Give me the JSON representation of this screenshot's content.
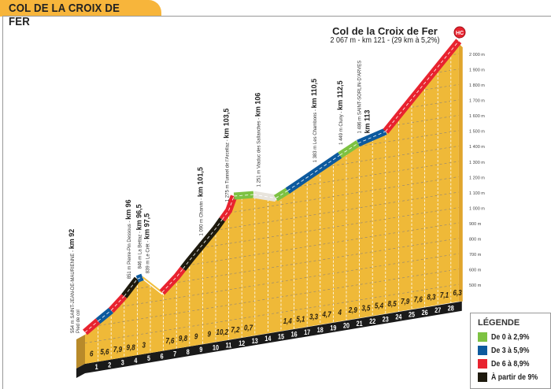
{
  "title": "COL DE LA CROIX DE FER",
  "summit": {
    "name": "Col de la Croix de Fer",
    "info": "2 067 m - km 121 - (29 km à 5,2%)",
    "category": "HC"
  },
  "legend": {
    "title": "LÉGENDE",
    "items": [
      {
        "label": "De 0 à 2,9%",
        "color": "#7dc242"
      },
      {
        "label": "De 3 à 5,9%",
        "color": "#0d5a9e"
      },
      {
        "label": "De 6 à 8,9%",
        "color": "#e8232f"
      },
      {
        "label": "À partir de 9%",
        "color": "#1e1a0e"
      }
    ]
  },
  "chart_data": {
    "type": "area",
    "title": "COL DE LA CROIX DE FER",
    "xlabel": "km",
    "ylabel": "altitude (m)",
    "y_ticks": [
      "500 m",
      "600 m",
      "700 m",
      "800 m",
      "900 m",
      "1 000 m",
      "1 100 m",
      "1 200 m",
      "1 300 m",
      "1 400 m",
      "1 500 m",
      "1 600 m",
      "1 700 m",
      "1 800 m",
      "1 900 m",
      "2 000 m"
    ],
    "y_tick_values": [
      500,
      600,
      700,
      800,
      900,
      1000,
      1100,
      1200,
      1300,
      1400,
      1500,
      1600,
      1700,
      1800,
      1900,
      2000
    ],
    "ylim": [
      500,
      2067
    ],
    "km_ticks": [
      "1",
      "2",
      "3",
      "4",
      "5",
      "6",
      "7",
      "8",
      "9",
      "10",
      "11",
      "12",
      "13",
      "14",
      "15",
      "16",
      "17",
      "18",
      "19",
      "20",
      "21",
      "22",
      "23",
      "24",
      "25",
      "26",
      "27",
      "28"
    ],
    "profile": [
      [
        0,
        554
      ],
      [
        1,
        614
      ],
      [
        2,
        670
      ],
      [
        3,
        749
      ],
      [
        4,
        847
      ],
      [
        4.4,
        855
      ],
      [
        5.9,
        735
      ],
      [
        7,
        820
      ],
      [
        8,
        915
      ],
      [
        9,
        1005
      ],
      [
        10,
        1095
      ],
      [
        11,
        1200
      ],
      [
        11.4,
        1288
      ],
      [
        12.9,
        1278
      ],
      [
        14.6,
        1232
      ],
      [
        15.5,
        1268
      ],
      [
        19.5,
        1446
      ],
      [
        20.9,
        1505
      ],
      [
        23,
        1554
      ],
      [
        28.6,
        2067
      ]
    ],
    "road_sections": [
      {
        "from": 0,
        "to": 1,
        "class": "6-8.9"
      },
      {
        "from": 1,
        "to": 2,
        "class": "3-5.9"
      },
      {
        "from": 2,
        "to": 3,
        "class": "6-8.9"
      },
      {
        "from": 3,
        "to": 4,
        "class": "9+"
      },
      {
        "from": 4,
        "to": 4.4,
        "class": "3-5.9"
      },
      {
        "from": 4.4,
        "to": 5.9,
        "class": "descent"
      },
      {
        "from": 5.9,
        "to": 7.5,
        "class": "6-8.9"
      },
      {
        "from": 7.5,
        "to": 10.5,
        "class": "9+"
      },
      {
        "from": 10.5,
        "to": 11.4,
        "class": "6-8.9"
      },
      {
        "from": 11.4,
        "to": 12.9,
        "class": "0-2.9"
      },
      {
        "from": 12.9,
        "to": 14.6,
        "class": "descent"
      },
      {
        "from": 14.6,
        "to": 15.5,
        "class": "0-2.9"
      },
      {
        "from": 15.5,
        "to": 19.5,
        "class": "3-5.9"
      },
      {
        "from": 19.5,
        "to": 20.9,
        "class": "0-2.9"
      },
      {
        "from": 20.9,
        "to": 23,
        "class": "3-5.9"
      },
      {
        "from": 23,
        "to": 28.6,
        "class": "6-8.9"
      }
    ],
    "gradients": [
      {
        "km": 0,
        "value": "6"
      },
      {
        "km": 1,
        "value": "5,6"
      },
      {
        "km": 2,
        "value": "7,9"
      },
      {
        "km": 3,
        "value": "9,8"
      },
      {
        "km": 4,
        "value": "3"
      },
      {
        "km": 6,
        "value": "7,6"
      },
      {
        "km": 7,
        "value": "9,8"
      },
      {
        "km": 8,
        "value": "9"
      },
      {
        "km": 9,
        "value": "9"
      },
      {
        "km": 10,
        "value": "10,2"
      },
      {
        "km": 11,
        "value": "7,2"
      },
      {
        "km": 12,
        "value": "0,7"
      },
      {
        "km": 15,
        "value": "1,4"
      },
      {
        "km": 16,
        "value": "5,1"
      },
      {
        "km": 17,
        "value": "3,3"
      },
      {
        "km": 18,
        "value": "4,7"
      },
      {
        "km": 19,
        "value": "4"
      },
      {
        "km": 20,
        "value": "2,9"
      },
      {
        "km": 21,
        "value": "3,5"
      },
      {
        "km": 22,
        "value": "5,4"
      },
      {
        "km": 23,
        "value": "8,5"
      },
      {
        "km": 24,
        "value": "7,9"
      },
      {
        "km": 25,
        "value": "7,6"
      },
      {
        "km": 26,
        "value": "8,3"
      },
      {
        "km": 27,
        "value": "7,1"
      },
      {
        "km": 28,
        "value": "6,3"
      }
    ],
    "waypoints": [
      {
        "km": 0,
        "alt": 554,
        "text": "554 m SAINT-JEAN-DE-MAURIENNE",
        "km_label": "km 92",
        "sub": "Pied de col"
      },
      {
        "km": 3.5,
        "alt": 851,
        "text": "851 m Pierre-Pin Dessous",
        "km_label": "km 96"
      },
      {
        "km": 4.3,
        "alt": 846,
        "text": "846 m La Bettaz",
        "km_label": "km 96,5"
      },
      {
        "km": 4.9,
        "alt": 839,
        "text": "839 m Le Crêt",
        "km_label": "km 97,5"
      },
      {
        "km": 9,
        "alt": 1090,
        "text": "1 090 m Charvin",
        "km_label": "km 101,5"
      },
      {
        "km": 11,
        "alt": 1275,
        "text": "1 275 m Tunnel de l'Arcellaz",
        "km_label": "km 103,5"
      },
      {
        "km": 13.4,
        "alt": 1251,
        "text": "1 251 m Viaduc des Sallanches",
        "km_label": "km 106"
      },
      {
        "km": 17.7,
        "alt": 1383,
        "text": "1 383 m Les Chambons",
        "km_label": "km 110,5"
      },
      {
        "km": 19.7,
        "alt": 1449,
        "text": "1 449 m Cluny",
        "km_label": "km 112,5"
      },
      {
        "km": 21.1,
        "alt": 1486,
        "text": "1 486 m SAINT-SORLIN-D'ARVES",
        "km_label": "km 113"
      }
    ]
  }
}
